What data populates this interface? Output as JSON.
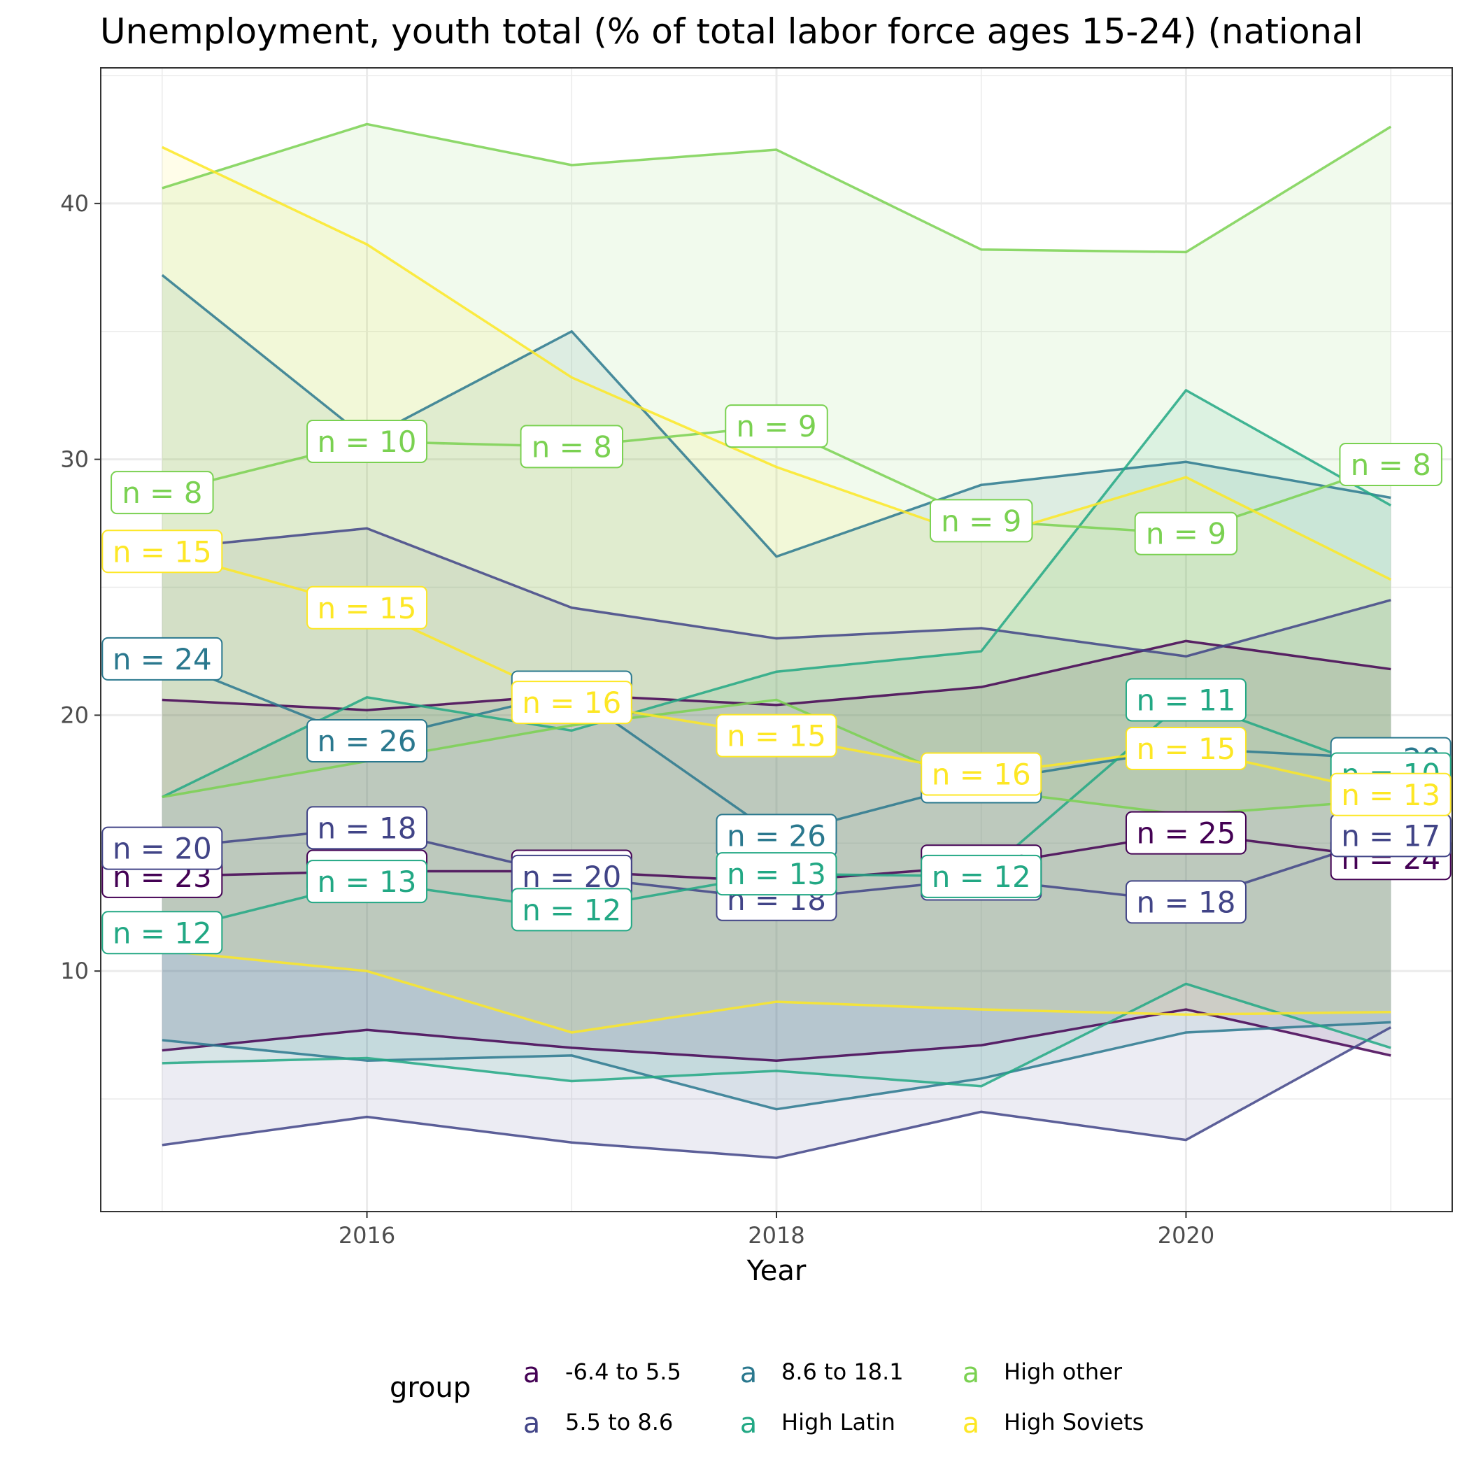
{
  "chart_data": {
    "type": "area",
    "title": "Unemployment, youth total (% of total labor force ages 15-24) (national",
    "xlabel": "Year",
    "ylabel": "",
    "xlim": [
      2014.7,
      2021.3
    ],
    "ylim": [
      0.6,
      45.3
    ],
    "x_ticks": [
      2016,
      2018,
      2020
    ],
    "y_ticks": [
      10,
      20,
      30,
      40
    ],
    "grid": true,
    "legend": {
      "title": "group",
      "position": "bottom",
      "key_glyph": "a",
      "items": [
        "-6.4 to 5.5",
        "5.5 to 8.6",
        "8.6 to 18.1",
        "High Latin",
        "High other",
        "High Soviets"
      ]
    },
    "x": [
      2015,
      2016,
      2017,
      2018,
      2019,
      2020,
      2021
    ],
    "series": [
      {
        "name": "-6.4 to 5.5",
        "color": "#440154",
        "upper": [
          20.6,
          20.2,
          20.8,
          20.4,
          21.1,
          22.9,
          21.8
        ],
        "mean": [
          13.7,
          13.9,
          13.9,
          13.5,
          14.1,
          15.4,
          14.4
        ],
        "lower": [
          6.9,
          7.7,
          7.0,
          6.5,
          7.1,
          8.5,
          6.7
        ],
        "n": [
          23,
          23,
          20,
          20,
          20,
          25,
          24
        ]
      },
      {
        "name": "5.5 to 8.6",
        "color": "#414487",
        "upper": [
          26.5,
          27.3,
          24.2,
          23.0,
          23.4,
          22.3,
          24.5
        ],
        "mean": [
          14.8,
          15.6,
          13.7,
          12.8,
          13.6,
          12.7,
          15.3
        ],
        "lower": [
          3.2,
          4.3,
          3.3,
          2.7,
          4.5,
          3.4,
          7.8
        ],
        "n": [
          20,
          18,
          20,
          18,
          20,
          18,
          17
        ]
      },
      {
        "name": "8.6 to 18.1",
        "color": "#2A788E",
        "upper": [
          37.2,
          30.8,
          35.0,
          26.2,
          29.0,
          29.9,
          28.5
        ],
        "mean": [
          22.2,
          19.0,
          20.9,
          15.3,
          17.4,
          18.7,
          18.3
        ],
        "lower": [
          7.3,
          6.5,
          6.7,
          4.6,
          5.8,
          7.6,
          8.0
        ],
        "n": [
          24,
          26,
          21,
          26,
          25,
          24,
          20
        ]
      },
      {
        "name": "High Latin",
        "color": "#22A884",
        "upper": [
          16.8,
          20.7,
          19.4,
          21.7,
          22.5,
          32.7,
          28.2
        ],
        "mean": [
          11.5,
          13.5,
          12.4,
          13.8,
          13.7,
          20.6,
          17.7
        ],
        "lower": [
          6.4,
          6.6,
          5.7,
          6.1,
          5.5,
          9.5,
          7.0
        ],
        "n": [
          12,
          13,
          12,
          13,
          12,
          11,
          10
        ]
      },
      {
        "name": "High other",
        "color": "#7AD151",
        "upper": [
          40.6,
          43.1,
          41.5,
          42.1,
          38.2,
          38.1,
          43.0
        ],
        "mean": [
          28.7,
          30.7,
          30.5,
          31.3,
          27.6,
          27.1,
          29.8
        ],
        "lower": [
          16.8,
          18.2,
          19.6,
          20.6,
          17.1,
          16.1,
          16.7
        ],
        "n": [
          8,
          10,
          8,
          9,
          9,
          9,
          8
        ]
      },
      {
        "name": "High Soviets",
        "color": "#FDE725",
        "upper": [
          42.2,
          38.4,
          33.2,
          29.7,
          26.9,
          29.3,
          25.3
        ],
        "mean": [
          26.4,
          24.2,
          20.5,
          19.2,
          17.7,
          18.7,
          16.9
        ],
        "lower": [
          10.8,
          10.0,
          7.6,
          8.8,
          8.5,
          8.3,
          8.4
        ],
        "n": [
          15,
          15,
          16,
          15,
          16,
          15,
          13
        ]
      }
    ]
  }
}
